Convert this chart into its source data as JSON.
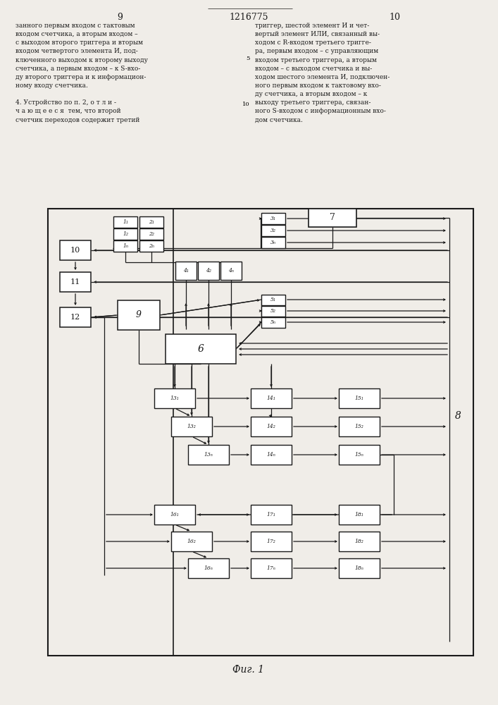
{
  "title_page_num_left": "9",
  "title_center": "1216775",
  "title_page_num_right": "10",
  "fig_label": "Фиг. 1",
  "bg_color": "#f0ede8",
  "text_left": "занного первым входом с тактовым\nвходом счетчика, а вторым входом –\nс выходом второго триггера и вторым\nвходом четвертого элемента И, под-\nключенного выходом к второму выходу\nсчетчика, а первым входом – к S-вхо-\nду второго триггера и к информацион-\nному входу счетчика.\n\n4. Устройство по п. 2, о т л и -\nч а ю щ е е с я  тем, что второй\nсчетчик переходов содержит третий",
  "text_right": "триггер, шестой элемент И и чет-\nвертый элемент ИЛИ, связанный вы-\nходом с R-входом третьего тригге-\nра, первым входом – с управляющим\nвходом третьего триггера, а вторым\nвходом – с выходом счетчика и вы-\nходом шестого элемента И, подключен-\nного первым входом к тактовому вхо-\nду счетчика, а вторым входом – к\nвыходу третьего триггера, связан-\nного S-входом с информационным вхо-\nдом счетчика.",
  "lc": "#1a1a1a",
  "bc": "#ffffff"
}
